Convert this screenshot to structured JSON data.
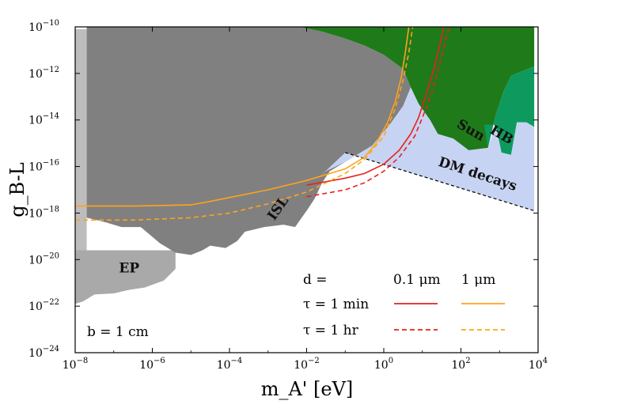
{
  "chart_data": {
    "type": "line",
    "title": "",
    "xlabel": "m_A' [eV]",
    "ylabel": "g_B-L",
    "xscale": "log",
    "yscale": "log",
    "xlim": [
      1e-08,
      10000.0
    ],
    "ylim": [
      1e-24,
      1e-10
    ],
    "x_ticks": [
      {
        "label": "10^-8",
        "value": -8
      },
      {
        "label": "10^-6",
        "value": -6
      },
      {
        "label": "10^-4",
        "value": -4
      },
      {
        "label": "10^-2",
        "value": -2
      },
      {
        "label": "10^0",
        "value": 0
      },
      {
        "label": "10^2",
        "value": 2
      },
      {
        "label": "10^4",
        "value": 4
      }
    ],
    "y_ticks": [
      {
        "label": "10^-10",
        "value": -10
      },
      {
        "label": "10^-12",
        "value": -12
      },
      {
        "label": "10^-14",
        "value": -14
      },
      {
        "label": "10^-16",
        "value": -16
      },
      {
        "label": "10^-18",
        "value": -18
      },
      {
        "label": "10^-20",
        "value": -20
      },
      {
        "label": "10^-22",
        "value": -22
      },
      {
        "label": "10^-24",
        "value": -24
      }
    ],
    "regions": [
      {
        "name": "EP",
        "color": "#a9a9a9",
        "boundary_log10": [
          [
            -8,
            -21.9
          ],
          [
            -7.8,
            -21.8
          ],
          [
            -7.5,
            -21.5
          ],
          [
            -7,
            -21.45
          ],
          [
            -6.6,
            -21.3
          ],
          [
            -6.2,
            -21.2
          ],
          [
            -5.7,
            -20.9
          ],
          [
            -5.4,
            -20.4
          ],
          [
            -5.4,
            -19.6
          ],
          [
            -8,
            -19.6
          ]
        ]
      },
      {
        "name": "",
        "color": "#bdbdbd",
        "boundary_log10": [
          [
            -8,
            -19.6
          ],
          [
            -7.7,
            -19.6
          ],
          [
            -7.7,
            -10.1
          ],
          [
            -8,
            -10.1
          ]
        ]
      },
      {
        "name": "ISL",
        "color": "#808080",
        "boundary_log10": [
          [
            -7.7,
            -18.2
          ],
          [
            -7.2,
            -18.4
          ],
          [
            -6.8,
            -18.6
          ],
          [
            -6.3,
            -18.6
          ],
          [
            -5.8,
            -19.3
          ],
          [
            -5.4,
            -19.7
          ],
          [
            -5.0,
            -19.8
          ],
          [
            -4.7,
            -19.6
          ],
          [
            -4.5,
            -19.4
          ],
          [
            -4.1,
            -19.5
          ],
          [
            -3.8,
            -19.2
          ],
          [
            -3.6,
            -18.8
          ],
          [
            -3.1,
            -18.6
          ],
          [
            -2.6,
            -18.5
          ],
          [
            -2.3,
            -18.6
          ],
          [
            -2.0,
            -17.9
          ],
          [
            -1.8,
            -17.4
          ],
          [
            -1.6,
            -16.7
          ],
          [
            -1.4,
            -16.2
          ],
          [
            -1.0,
            -15.8
          ],
          [
            -0.7,
            -15.5
          ],
          [
            -0.3,
            -15.1
          ],
          [
            0.2,
            -14.1
          ],
          [
            0.5,
            -13.4
          ],
          [
            0.7,
            -12.6
          ],
          [
            0.5,
            -11.8
          ],
          [
            0.0,
            -11.2
          ],
          [
            -0.5,
            -10.8
          ],
          [
            -1.0,
            -10.5
          ],
          [
            -1.6,
            -10.2
          ],
          [
            -2.2,
            -10.0
          ],
          [
            -7.7,
            -10.0
          ]
        ]
      },
      {
        "name": "Sun",
        "color": "#1f7a1a",
        "boundary_log10": [
          [
            -2.2,
            -10.0
          ],
          [
            3.9,
            -10.0
          ],
          [
            3.9,
            -11.7
          ],
          [
            3.3,
            -12.1
          ],
          [
            3.1,
            -12.8
          ],
          [
            2.9,
            -13.8
          ],
          [
            2.7,
            -15.2
          ],
          [
            2.2,
            -15.3
          ],
          [
            1.8,
            -14.8
          ],
          [
            1.4,
            -14.6
          ],
          [
            1.2,
            -14.0
          ],
          [
            0.9,
            -13.3
          ],
          [
            0.7,
            -12.6
          ],
          [
            0.5,
            -11.8
          ],
          [
            0.0,
            -11.2
          ],
          [
            -0.5,
            -10.8
          ],
          [
            -1.0,
            -10.5
          ],
          [
            -1.6,
            -10.2
          ]
        ]
      },
      {
        "name": "HB",
        "color": "#0e9a5e",
        "boundary_log10": [
          [
            3.9,
            -11.7
          ],
          [
            3.9,
            -14.3
          ],
          [
            3.7,
            -14.1
          ],
          [
            3.45,
            -14.1
          ],
          [
            3.3,
            -15.5
          ],
          [
            3.05,
            -15.4
          ],
          [
            2.9,
            -14.2
          ],
          [
            2.6,
            -14.2
          ],
          [
            2.7,
            -15.2
          ],
          [
            2.9,
            -13.8
          ],
          [
            3.1,
            -12.8
          ],
          [
            3.3,
            -12.1
          ]
        ]
      },
      {
        "name": "DM decays",
        "color": "#c6d3f2",
        "boundary_log10": [
          [
            0.7,
            -12.6
          ],
          [
            0.9,
            -13.3
          ],
          [
            1.2,
            -14.0
          ],
          [
            1.4,
            -14.6
          ],
          [
            1.8,
            -14.8
          ],
          [
            2.2,
            -15.3
          ],
          [
            2.7,
            -15.2
          ],
          [
            2.9,
            -14.2
          ],
          [
            3.05,
            -15.4
          ],
          [
            3.3,
            -15.5
          ],
          [
            3.45,
            -14.1
          ],
          [
            3.7,
            -14.1
          ],
          [
            3.9,
            -14.3
          ],
          [
            3.9,
            -17.9
          ],
          [
            -1.0,
            -15.4
          ],
          [
            -1.7,
            -16.5
          ],
          [
            -1.5,
            -16.2
          ],
          [
            -1.0,
            -15.8
          ],
          [
            -0.7,
            -15.5
          ],
          [
            -0.3,
            -15.1
          ],
          [
            0.2,
            -14.1
          ],
          [
            0.5,
            -13.4
          ]
        ]
      }
    ],
    "series": [
      {
        "name": "d = 0.1 μm, τ = 1 min",
        "color": "#e8201a",
        "dash": "solid",
        "points_log10": [
          [
            -2,
            -16.8
          ],
          [
            -1,
            -16.5
          ],
          [
            -0.5,
            -16.3
          ],
          [
            0,
            -15.9
          ],
          [
            0.4,
            -15.3
          ],
          [
            0.7,
            -14.6
          ],
          [
            0.9,
            -13.9
          ],
          [
            1.1,
            -12.9
          ],
          [
            1.3,
            -11.8
          ],
          [
            1.45,
            -10.8
          ],
          [
            1.55,
            -10.0
          ]
        ]
      },
      {
        "name": "d = 0.1 μm, τ = 1 hr",
        "color": "#e8201a",
        "dash": "dashed",
        "points_log10": [
          [
            -2,
            -17.3
          ],
          [
            -1,
            -17.0
          ],
          [
            -0.5,
            -16.7
          ],
          [
            0,
            -16.2
          ],
          [
            0.4,
            -15.6
          ],
          [
            0.8,
            -14.7
          ],
          [
            1.0,
            -13.9
          ],
          [
            1.25,
            -12.8
          ],
          [
            1.45,
            -11.6
          ],
          [
            1.6,
            -10.6
          ],
          [
            1.7,
            -10.0
          ]
        ]
      },
      {
        "name": "d = 1 μm, τ = 1 min",
        "color": "#ffa31a",
        "dash": "solid",
        "points_log10": [
          [
            -8,
            -17.7
          ],
          [
            -6.5,
            -17.7
          ],
          [
            -5,
            -17.65
          ],
          [
            -4.5,
            -17.5
          ],
          [
            -3,
            -17.0
          ],
          [
            -2,
            -16.6
          ],
          [
            -1,
            -16.1
          ],
          [
            -0.5,
            -15.6
          ],
          [
            -0.2,
            -15.0
          ],
          [
            0.1,
            -14.1
          ],
          [
            0.3,
            -13.2
          ],
          [
            0.45,
            -12.2
          ],
          [
            0.55,
            -11.2
          ],
          [
            0.65,
            -10.0
          ]
        ]
      },
      {
        "name": "d = 1 μm, τ = 1 hr",
        "color": "#ffa31a",
        "dash": "dashed",
        "points_log10": [
          [
            -8,
            -18.3
          ],
          [
            -6.5,
            -18.3
          ],
          [
            -5,
            -18.2
          ],
          [
            -4,
            -18.0
          ],
          [
            -3,
            -17.6
          ],
          [
            -2,
            -17.1
          ],
          [
            -1,
            -16.3
          ],
          [
            -0.5,
            -15.7
          ],
          [
            0,
            -14.7
          ],
          [
            0.3,
            -13.5
          ],
          [
            0.5,
            -12.3
          ],
          [
            0.65,
            -11.1
          ],
          [
            0.75,
            -10.0
          ]
        ]
      }
    ],
    "region_labels": [
      {
        "key": "ep",
        "text": "EP",
        "at_log10": [
          -6.6,
          -20.55
        ]
      },
      {
        "key": "isl",
        "text": "ISL",
        "at_log10": [
          -2.65,
          -17.9
        ]
      },
      {
        "key": "sun",
        "text": "Sun",
        "at_log10": [
          2.2,
          -14.6
        ]
      },
      {
        "key": "hb",
        "text": "HB",
        "at_log10": [
          3.0,
          -14.8
        ]
      },
      {
        "key": "dm",
        "text": "DM decays",
        "at_log10": [
          2.4,
          -16.5
        ]
      }
    ],
    "annotation": "b = 1 cm",
    "legend": {
      "placement": "lower-right",
      "header_row": [
        "d =",
        "0.1 μm",
        "1 μm"
      ],
      "rows": [
        "τ = 1 min",
        "τ = 1 hr"
      ]
    }
  }
}
